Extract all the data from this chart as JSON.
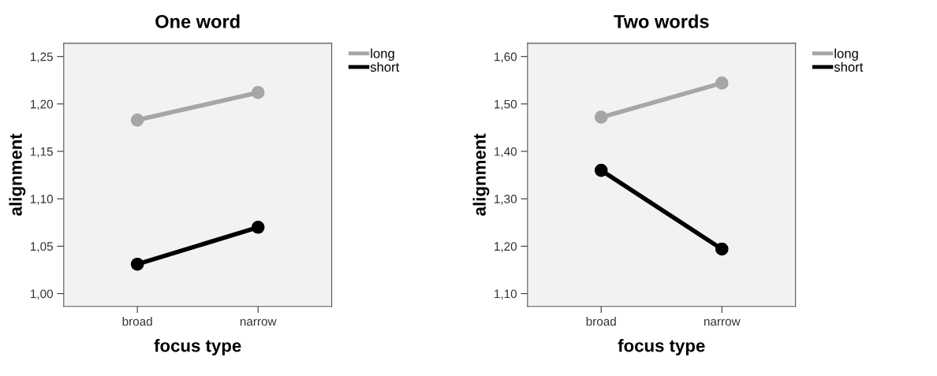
{
  "chart_data": [
    {
      "type": "line",
      "title": "One word",
      "xlabel": "focus type",
      "ylabel": "alignment",
      "categories": [
        "broad",
        "narrow"
      ],
      "ylim": [
        0.9865,
        1.264
      ],
      "yticks": [
        {
          "value": 1.0,
          "label": "1,00"
        },
        {
          "value": 1.05,
          "label": "1,05"
        },
        {
          "value": 1.1,
          "label": "1,10"
        },
        {
          "value": 1.15,
          "label": "1,15"
        },
        {
          "value": 1.2,
          "label": "1,20"
        },
        {
          "value": 1.25,
          "label": "1,25"
        }
      ],
      "marker": "circle",
      "line_style": "solid",
      "grid": false,
      "legend": "top right",
      "series": [
        {
          "name": "long",
          "color": "#a6a6a6",
          "values": [
            1.183,
            1.212
          ]
        },
        {
          "name": "short",
          "color": "#000000",
          "values": [
            1.031,
            1.07
          ]
        }
      ]
    },
    {
      "type": "line",
      "title": "Two words",
      "xlabel": "focus type",
      "ylabel": "alignment",
      "categories": [
        "broad",
        "narrow"
      ],
      "ylim": [
        1.073,
        1.628
      ],
      "yticks": [
        {
          "value": 1.1,
          "label": "1,10"
        },
        {
          "value": 1.2,
          "label": "1,20"
        },
        {
          "value": 1.3,
          "label": "1,30"
        },
        {
          "value": 1.4,
          "label": "1,40"
        },
        {
          "value": 1.5,
          "label": "1,50"
        },
        {
          "value": 1.6,
          "label": "1,60"
        }
      ],
      "marker": "circle",
      "line_style": "solid",
      "grid": false,
      "legend": "top right",
      "series": [
        {
          "name": "long",
          "color": "#a6a6a6",
          "values": [
            1.472,
            1.544
          ]
        },
        {
          "name": "short",
          "color": "#000000",
          "values": [
            1.36,
            1.194
          ]
        }
      ]
    }
  ]
}
